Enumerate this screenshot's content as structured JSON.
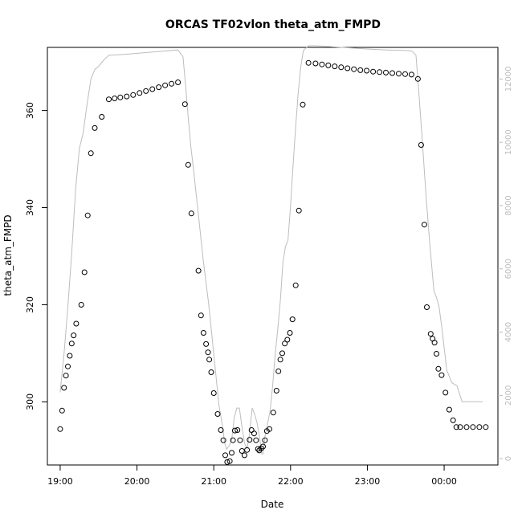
{
  "chart_data": {
    "type": "scatter",
    "title": "ORCAS TF02vlon theta_atm_FMPD",
    "xlabel": "Date",
    "ylabel": "theta_atm_FMPD",
    "x_unit": "minutes after 19:00",
    "xlim": [
      -10,
      342
    ],
    "ylim": [
      287,
      373
    ],
    "y2lim": [
      -200,
      13000
    ],
    "x_ticks": [
      {
        "label": "19:00",
        "value": 0
      },
      {
        "label": "20:00",
        "value": 60
      },
      {
        "label": "21:00",
        "value": 120
      },
      {
        "label": "22:00",
        "value": 180
      },
      {
        "label": "23:00",
        "value": 240
      },
      {
        "label": "00:00",
        "value": 300
      }
    ],
    "y_ticks": [
      300,
      320,
      340,
      360
    ],
    "y2_ticks": [
      0,
      2000,
      4000,
      6000,
      8000,
      10000,
      12000
    ],
    "series": [
      {
        "name": "",
        "marker": "open-circle",
        "color": "#000000",
        "points": [
          [
            0,
            294.4
          ],
          [
            1.5,
            298.2
          ],
          [
            3,
            302.9
          ],
          [
            4.5,
            305.4
          ],
          [
            6,
            307.3
          ],
          [
            7.5,
            309.5
          ],
          [
            9,
            312
          ],
          [
            10.5,
            313.7
          ],
          [
            12.5,
            316.1
          ],
          [
            16.5,
            320
          ],
          [
            19,
            326.7
          ],
          [
            21.5,
            338.4
          ],
          [
            24,
            351.2
          ],
          [
            27,
            356.4
          ],
          [
            32.5,
            358.7
          ],
          [
            38,
            362.3
          ],
          [
            42.5,
            362.5
          ],
          [
            47,
            362.7
          ],
          [
            52,
            362.9
          ],
          [
            57,
            363.2
          ],
          [
            62,
            363.6
          ],
          [
            67,
            364
          ],
          [
            72,
            364.4
          ],
          [
            77,
            364.8
          ],
          [
            82,
            365.2
          ],
          [
            87,
            365.5
          ],
          [
            92,
            365.8
          ],
          [
            97.5,
            361.3
          ],
          [
            100,
            348.8
          ],
          [
            102.5,
            338.8
          ],
          [
            108,
            327
          ],
          [
            110,
            317.8
          ],
          [
            112,
            314.2
          ],
          [
            114,
            311.9
          ],
          [
            115.5,
            310.2
          ],
          [
            116.5,
            308.7
          ],
          [
            118,
            306.1
          ],
          [
            120,
            301.8
          ],
          [
            123,
            297.5
          ],
          [
            125.5,
            294.2
          ],
          [
            127.5,
            292.1
          ],
          [
            129,
            289
          ],
          [
            130.5,
            287.6
          ],
          [
            132.5,
            287.8
          ],
          [
            134,
            289.5
          ],
          [
            135,
            292.1
          ],
          [
            136.5,
            294.1
          ],
          [
            138.5,
            294.2
          ],
          [
            140.5,
            292.1
          ],
          [
            142,
            289.9
          ],
          [
            144,
            289
          ],
          [
            146,
            290.1
          ],
          [
            148,
            292.2
          ],
          [
            149.5,
            294.2
          ],
          [
            151.5,
            293.5
          ],
          [
            153,
            292.1
          ],
          [
            154.5,
            290.3
          ],
          [
            155.5,
            290
          ],
          [
            157,
            290.4
          ],
          [
            158.5,
            290.8
          ],
          [
            160,
            292.1
          ],
          [
            161.5,
            294
          ],
          [
            163.5,
            294.4
          ],
          [
            166.5,
            297.8
          ],
          [
            169,
            302.3
          ],
          [
            170.5,
            306.3
          ],
          [
            172,
            308.7
          ],
          [
            173.5,
            310
          ],
          [
            175.5,
            312
          ],
          [
            177.5,
            312.8
          ],
          [
            179.5,
            314.2
          ],
          [
            181.5,
            317
          ],
          [
            184,
            324
          ],
          [
            186.5,
            339.4
          ],
          [
            189.5,
            361.2
          ],
          [
            194,
            369.8
          ],
          [
            199.5,
            369.7
          ],
          [
            204.5,
            369.5
          ],
          [
            209.5,
            369.3
          ],
          [
            214.5,
            369.1
          ],
          [
            219.5,
            368.9
          ],
          [
            224.5,
            368.7
          ],
          [
            229.5,
            368.5
          ],
          [
            234.5,
            368.3
          ],
          [
            239.5,
            368.2
          ],
          [
            244.5,
            368
          ],
          [
            249.5,
            367.9
          ],
          [
            254.5,
            367.8
          ],
          [
            259.5,
            367.7
          ],
          [
            264.5,
            367.6
          ],
          [
            269.5,
            367.5
          ],
          [
            274.5,
            367.4
          ],
          [
            279.5,
            366.5
          ],
          [
            282,
            352.9
          ],
          [
            284.5,
            336.5
          ],
          [
            286.5,
            319.5
          ],
          [
            289.5,
            314
          ],
          [
            291,
            313
          ],
          [
            292.5,
            312.2
          ],
          [
            294,
            309.9
          ],
          [
            295.5,
            306.8
          ],
          [
            298,
            305.5
          ],
          [
            301,
            301.9
          ],
          [
            304,
            298.4
          ],
          [
            307,
            296.2
          ],
          [
            309.5,
            294.8
          ],
          [
            312.5,
            294.8
          ],
          [
            317.5,
            294.8
          ],
          [
            322.5,
            294.8
          ],
          [
            327.5,
            294.8
          ],
          [
            332.5,
            294.8
          ]
        ]
      },
      {
        "name": "",
        "axis": "right",
        "color": "#bdbdbd",
        "points": [
          [
            0,
            2100
          ],
          [
            3,
            3300
          ],
          [
            6,
            4800
          ],
          [
            9,
            6500
          ],
          [
            12,
            8500
          ],
          [
            15,
            9800
          ],
          [
            18,
            10300
          ],
          [
            21,
            11200
          ],
          [
            24,
            12000
          ],
          [
            27,
            12300
          ],
          [
            30,
            12400
          ],
          [
            34,
            12600
          ],
          [
            38,
            12750
          ],
          [
            50,
            12780
          ],
          [
            65,
            12830
          ],
          [
            80,
            12880
          ],
          [
            92,
            12920
          ],
          [
            96,
            12700
          ],
          [
            98,
            11800
          ],
          [
            100,
            10800
          ],
          [
            102,
            9900
          ],
          [
            104,
            9200
          ],
          [
            108,
            7700
          ],
          [
            112,
            6200
          ],
          [
            116,
            4900
          ],
          [
            120,
            3300
          ],
          [
            124,
            1700
          ],
          [
            127,
            1000
          ],
          [
            128.5,
            500
          ],
          [
            130,
            300
          ],
          [
            132,
            400
          ],
          [
            134,
            600
          ],
          [
            136,
            1300
          ],
          [
            138,
            1600
          ],
          [
            140,
            1600
          ],
          [
            142,
            1000
          ],
          [
            144,
            500
          ],
          [
            146,
            300
          ],
          [
            148,
            800
          ],
          [
            150,
            1600
          ],
          [
            152,
            1400
          ],
          [
            154,
            1100
          ],
          [
            156,
            600
          ],
          [
            157.5,
            150
          ],
          [
            158.5,
            150
          ],
          [
            160,
            700
          ],
          [
            162,
            1100
          ],
          [
            164,
            1500
          ],
          [
            166,
            2300
          ],
          [
            168,
            3300
          ],
          [
            170,
            4100
          ],
          [
            172,
            5000
          ],
          [
            174,
            6200
          ],
          [
            176,
            6700
          ],
          [
            178,
            6900
          ],
          [
            180,
            8000
          ],
          [
            182,
            9300
          ],
          [
            184,
            10500
          ],
          [
            186,
            11600
          ],
          [
            188,
            12400
          ],
          [
            190,
            12900
          ],
          [
            194,
            13050
          ],
          [
            200,
            13050
          ],
          [
            220,
            13000
          ],
          [
            240,
            12950
          ],
          [
            255,
            12920
          ],
          [
            270,
            12900
          ],
          [
            275,
            12880
          ],
          [
            278,
            12750
          ],
          [
            280,
            11700
          ],
          [
            283,
            10000
          ],
          [
            286,
            8200
          ],
          [
            289,
            6700
          ],
          [
            292,
            5300
          ],
          [
            294,
            5100
          ],
          [
            296,
            4800
          ],
          [
            298,
            4200
          ],
          [
            300,
            3500
          ],
          [
            302,
            2800
          ],
          [
            306,
            2400
          ],
          [
            310,
            2300
          ],
          [
            314,
            1800
          ],
          [
            318,
            1800
          ],
          [
            322,
            1800
          ],
          [
            326,
            1800
          ],
          [
            330,
            1800
          ]
        ]
      }
    ]
  }
}
